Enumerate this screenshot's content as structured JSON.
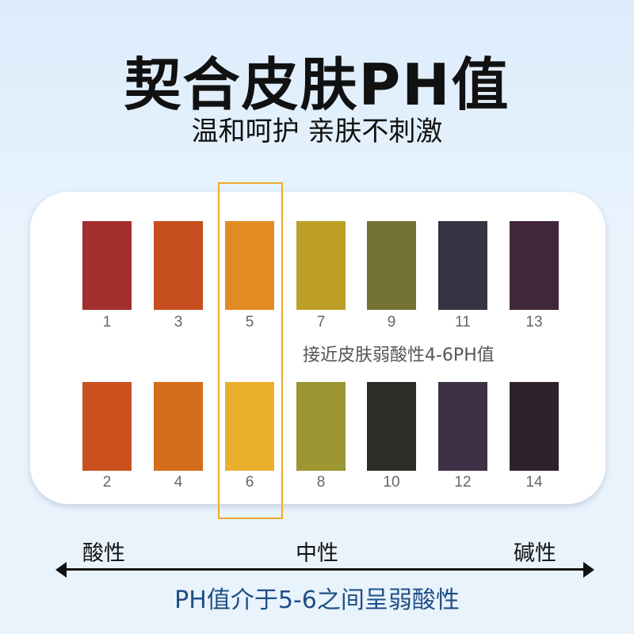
{
  "title": "契合皮肤PH值",
  "subtitle": "温和呵护 亲肤不刺激",
  "ph_chart": {
    "top_row": [
      {
        "label": "1",
        "color": "#a22f2d"
      },
      {
        "label": "3",
        "color": "#c64f1f"
      },
      {
        "label": "5",
        "color": "#e38b23"
      },
      {
        "label": "7",
        "color": "#bd9f28"
      },
      {
        "label": "9",
        "color": "#737134"
      },
      {
        "label": "11",
        "color": "#363442"
      },
      {
        "label": "13",
        "color": "#40283a"
      }
    ],
    "bottom_row": [
      {
        "label": "2",
        "color": "#cb521f"
      },
      {
        "label": "4",
        "color": "#d46d1c"
      },
      {
        "label": "6",
        "color": "#eab02d"
      },
      {
        "label": "8",
        "color": "#9c9633"
      },
      {
        "label": "10",
        "color": "#2c2d28"
      },
      {
        "label": "12",
        "color": "#3e3145"
      },
      {
        "label": "14",
        "color": "#30222b"
      }
    ],
    "note": "接近皮肤弱酸性4-6PH值",
    "highlight_color": "#e8ab2e"
  },
  "scale": {
    "acid": "酸性",
    "neutral": "中性",
    "alkaline": "碱性"
  },
  "conclusion": "PH值介于5-6之间呈弱酸性"
}
